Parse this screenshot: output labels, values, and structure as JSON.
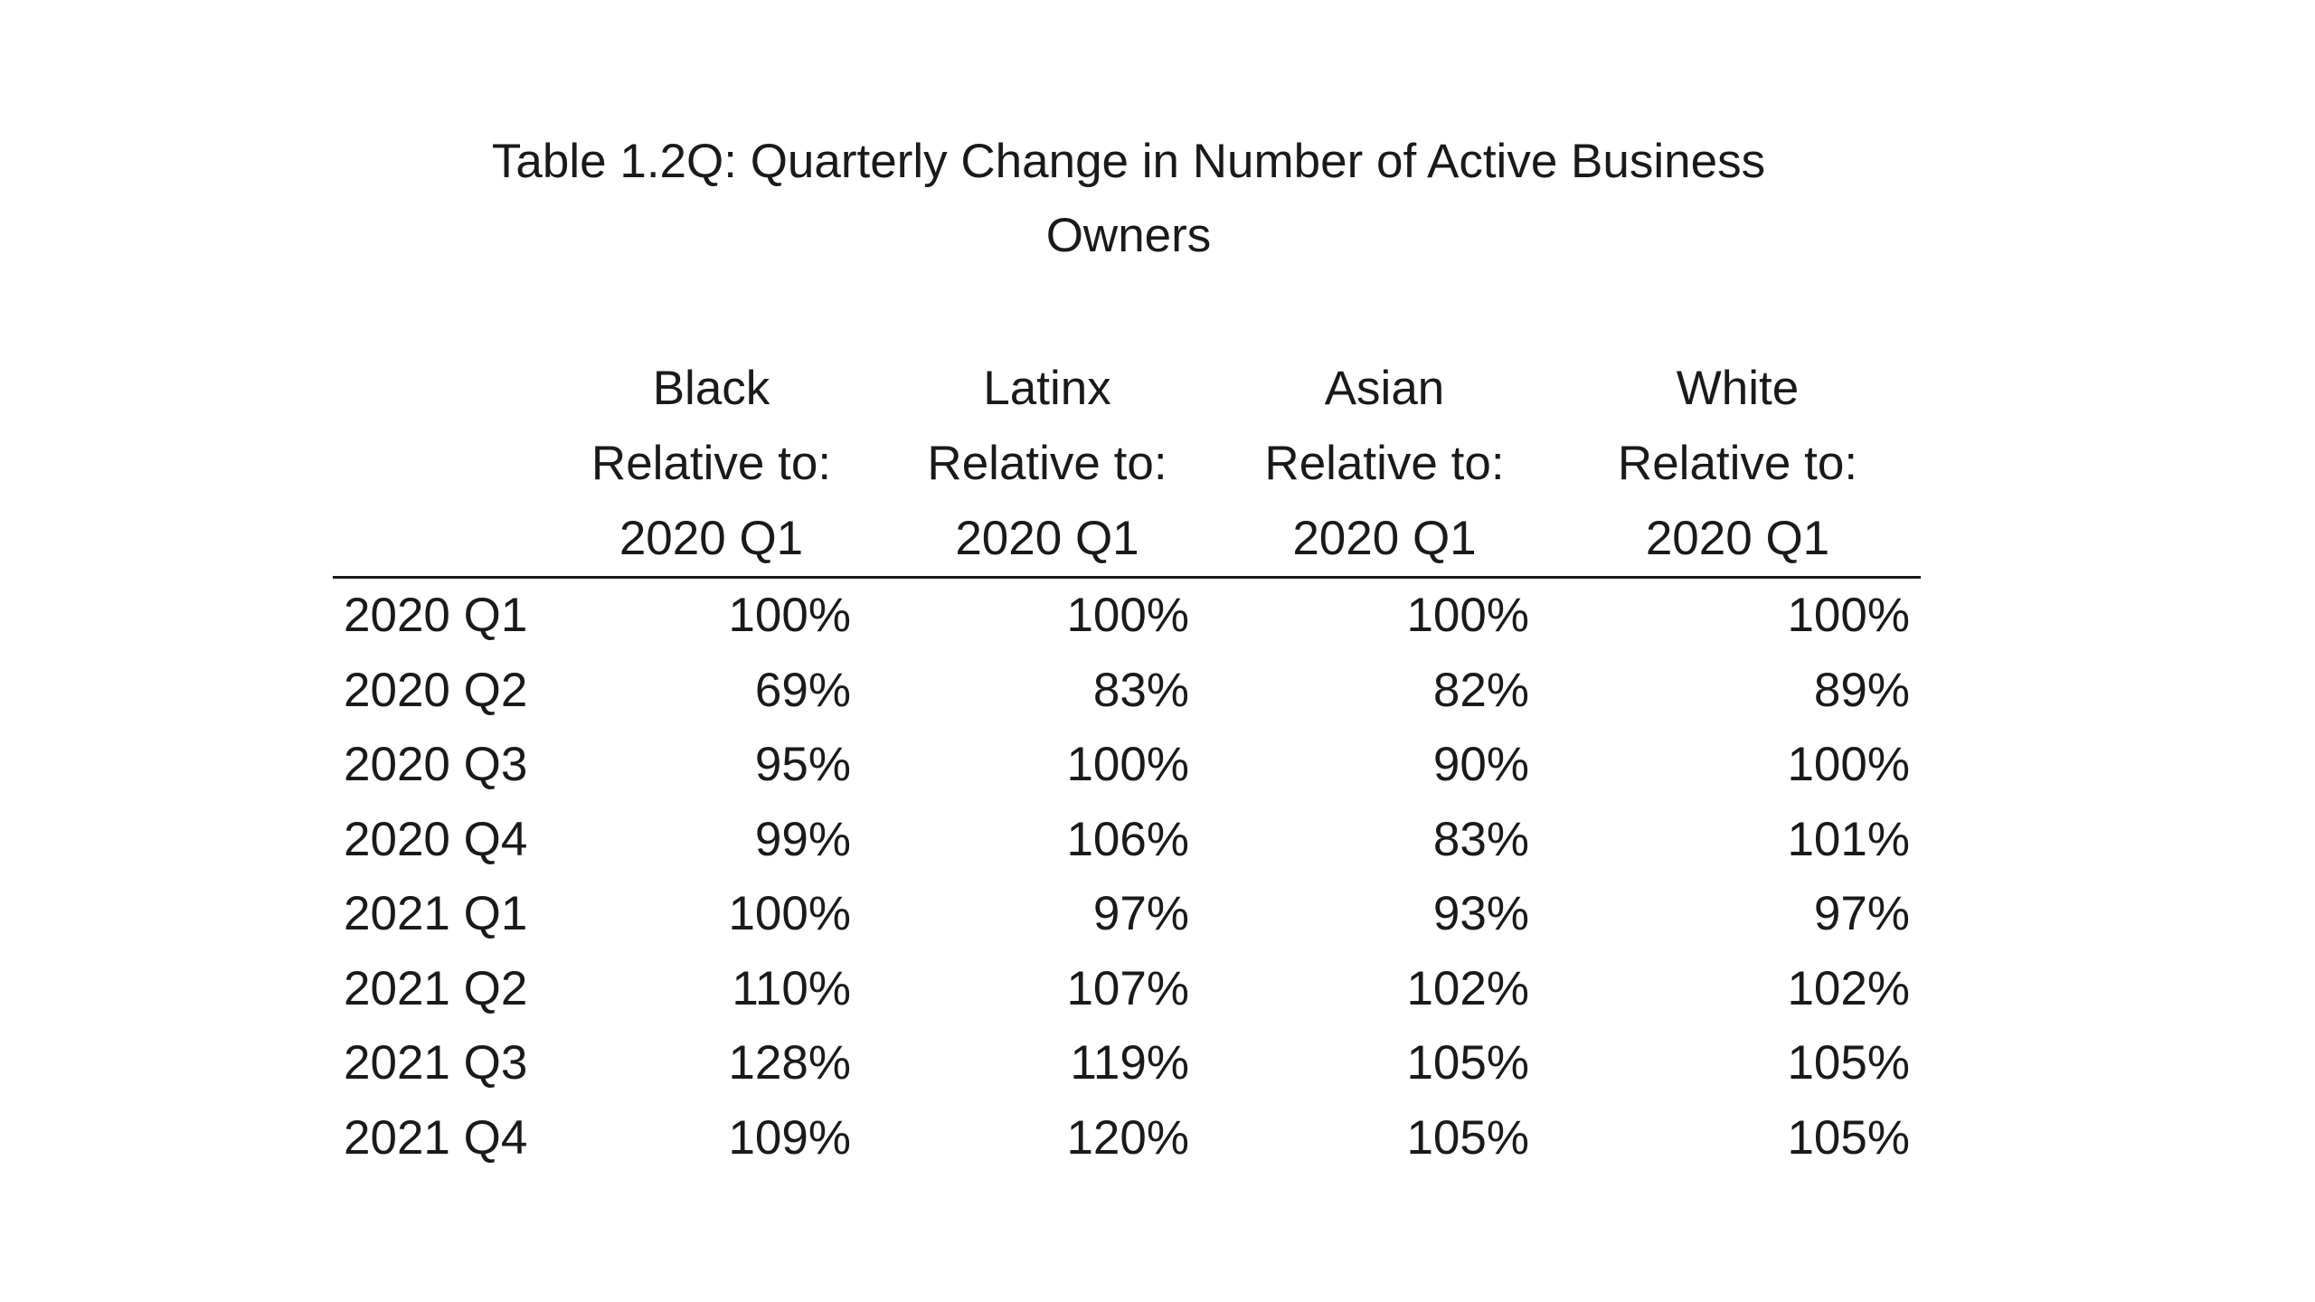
{
  "title": {
    "line1": "Table 1.2Q: Quarterly Change in Number of Active Business",
    "line2": "Owners"
  },
  "columns": [
    {
      "group": "Black",
      "relative": "Relative to:",
      "base": "2020 Q1"
    },
    {
      "group": "Latinx",
      "relative": "Relative to:",
      "base": "2020 Q1"
    },
    {
      "group": "Asian",
      "relative": "Relative to:",
      "base": "2020 Q1"
    },
    {
      "group": "White",
      "relative": "Relative to:",
      "base": "2020 Q1"
    }
  ],
  "rows": [
    {
      "label": "2020 Q1",
      "values": [
        "100%",
        "100%",
        "100%",
        "100%"
      ]
    },
    {
      "label": "2020 Q2",
      "values": [
        "69%",
        "83%",
        "82%",
        "89%"
      ]
    },
    {
      "label": "2020 Q3",
      "values": [
        "95%",
        "100%",
        "90%",
        "100%"
      ]
    },
    {
      "label": "2020 Q4",
      "values": [
        "99%",
        "106%",
        "83%",
        "101%"
      ]
    },
    {
      "label": "2021 Q1",
      "values": [
        "100%",
        "97%",
        "93%",
        "97%"
      ]
    },
    {
      "label": "2021 Q2",
      "values": [
        "110%",
        "107%",
        "102%",
        "102%"
      ]
    },
    {
      "label": "2021 Q3",
      "values": [
        "128%",
        "119%",
        "105%",
        "105%"
      ]
    },
    {
      "label": "2021 Q4",
      "values": [
        "109%",
        "120%",
        "105%",
        "105%"
      ]
    }
  ],
  "chart_data": {
    "type": "table",
    "title": "Table 1.2Q: Quarterly Change in Number of Active Business Owners",
    "headers": [
      "",
      "Black Relative to: 2020 Q1",
      "Latinx Relative to: 2020 Q1",
      "Asian Relative to: 2020 Q1",
      "White Relative to: 2020 Q1"
    ],
    "categories": [
      "2020 Q1",
      "2020 Q2",
      "2020 Q3",
      "2020 Q4",
      "2021 Q1",
      "2021 Q2",
      "2021 Q3",
      "2021 Q4"
    ],
    "series": [
      {
        "name": "Black Relative to: 2020 Q1",
        "values": [
          100,
          69,
          95,
          99,
          100,
          110,
          128,
          109
        ]
      },
      {
        "name": "Latinx Relative to: 2020 Q1",
        "values": [
          100,
          83,
          100,
          106,
          97,
          107,
          119,
          120
        ]
      },
      {
        "name": "Asian Relative to: 2020 Q1",
        "values": [
          100,
          82,
          90,
          83,
          93,
          102,
          105,
          105
        ]
      },
      {
        "name": "White Relative to: 2020 Q1",
        "values": [
          100,
          89,
          100,
          101,
          97,
          102,
          105,
          105
        ]
      }
    ]
  }
}
